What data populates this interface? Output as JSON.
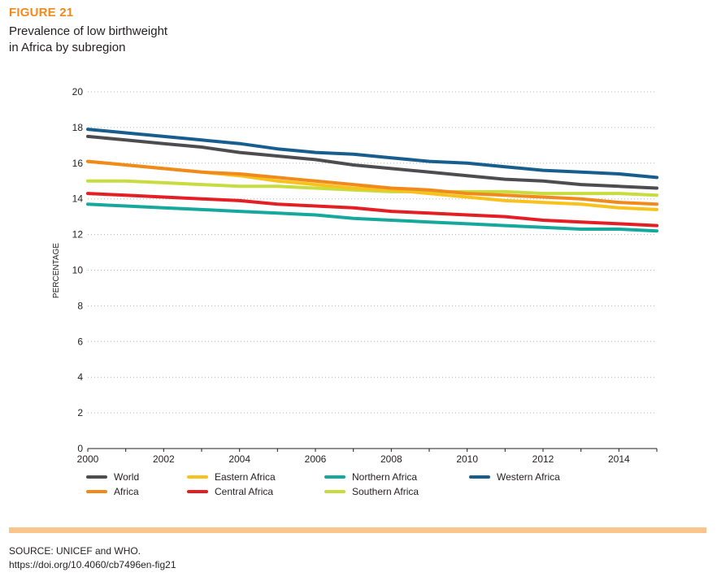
{
  "figure": {
    "label": "FIGURE 21",
    "title_line1": "Prevalence of low birthweight",
    "title_line2": "in Africa by subregion"
  },
  "source": {
    "line1": "SOURCE: UNICEF and WHO.",
    "line2": "https://doi.org/10.4060/cb7496en-fig21"
  },
  "colors": {
    "band": "#fbc48d",
    "figure_label": "#f08a1c"
  },
  "chart_data": {
    "type": "line",
    "ylabel": "PERCENTAGE",
    "xlabel": "",
    "xlim": [
      2000,
      2015
    ],
    "ylim": [
      0,
      20
    ],
    "x_ticks": [
      2000,
      2002,
      2004,
      2006,
      2008,
      2010,
      2012,
      2014
    ],
    "y_ticks": [
      0,
      2,
      4,
      6,
      8,
      10,
      12,
      14,
      16,
      18,
      20
    ],
    "grid": "horizontal dotted",
    "legend_position": "bottom",
    "x": [
      2000,
      2001,
      2002,
      2003,
      2004,
      2005,
      2006,
      2007,
      2008,
      2009,
      2010,
      2011,
      2012,
      2013,
      2014,
      2015
    ],
    "series": [
      {
        "name": "World",
        "color": "#4d4d4f",
        "values": [
          17.5,
          17.3,
          17.1,
          16.9,
          16.6,
          16.4,
          16.2,
          15.9,
          15.7,
          15.5,
          15.3,
          15.1,
          15.0,
          14.8,
          14.7,
          14.6
        ]
      },
      {
        "name": "Africa",
        "color": "#f08a1c",
        "values": [
          16.1,
          15.9,
          15.7,
          15.5,
          15.4,
          15.2,
          15.0,
          14.8,
          14.6,
          14.5,
          14.3,
          14.2,
          14.1,
          14.0,
          13.8,
          13.7
        ]
      },
      {
        "name": "Eastern Africa",
        "color": "#f8c21c",
        "values": [
          16.1,
          15.9,
          15.7,
          15.5,
          15.3,
          15.0,
          14.8,
          14.6,
          14.5,
          14.3,
          14.1,
          13.9,
          13.8,
          13.7,
          13.5,
          13.4
        ]
      },
      {
        "name": "Central Africa",
        "color": "#e31e24",
        "values": [
          14.3,
          14.2,
          14.1,
          14.0,
          13.9,
          13.7,
          13.6,
          13.5,
          13.3,
          13.2,
          13.1,
          13.0,
          12.8,
          12.7,
          12.6,
          12.5
        ]
      },
      {
        "name": "Northern Africa",
        "color": "#16a89c",
        "values": [
          13.7,
          13.6,
          13.5,
          13.4,
          13.3,
          13.2,
          13.1,
          12.9,
          12.8,
          12.7,
          12.6,
          12.5,
          12.4,
          12.3,
          12.3,
          12.2
        ]
      },
      {
        "name": "Southern Africa",
        "color": "#c7dc3e",
        "values": [
          15.0,
          15.0,
          14.9,
          14.8,
          14.7,
          14.7,
          14.6,
          14.5,
          14.4,
          14.4,
          14.4,
          14.4,
          14.3,
          14.3,
          14.3,
          14.2
        ]
      },
      {
        "name": "Western Africa",
        "color": "#175d8e",
        "values": [
          17.9,
          17.7,
          17.5,
          17.3,
          17.1,
          16.8,
          16.6,
          16.5,
          16.3,
          16.1,
          16.0,
          15.8,
          15.6,
          15.5,
          15.4,
          15.2
        ]
      }
    ],
    "legend_order": [
      "World",
      "Africa",
      "Eastern Africa",
      "Central Africa",
      "Northern Africa",
      "Southern Africa",
      "Western Africa"
    ]
  }
}
